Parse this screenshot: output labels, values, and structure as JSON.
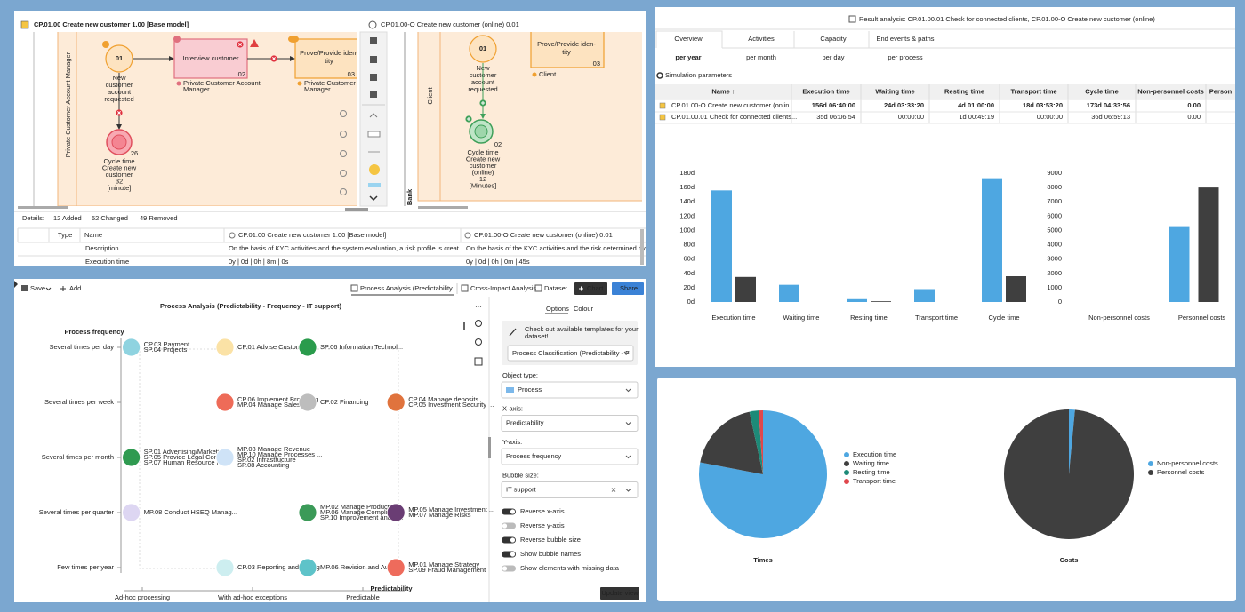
{
  "diagram": {
    "left_title": "CP.01.00 Create new customer 1.00 [Base model]",
    "right_title": "CP.01.00-O Create new customer (online) 0.01",
    "left": {
      "lane": "Private Customer Account Manager",
      "start": {
        "id": "01",
        "label": [
          "New",
          "customer",
          "account",
          "requested"
        ]
      },
      "task1": {
        "label": [
          "Interview customer"
        ],
        "id": "02",
        "role": [
          "Private Customer Account",
          "Manager"
        ]
      },
      "task2": {
        "label": [
          "Prove/Provide iden-",
          "tity"
        ],
        "id": "03",
        "role": [
          "Private Customer Ac",
          "Manager"
        ]
      },
      "end": {
        "id": "26",
        "label": [
          "Cycle time",
          "Create new",
          "customer",
          "32",
          "[minute]"
        ]
      }
    },
    "right": {
      "lane": "Client",
      "pool": "Bank",
      "start": {
        "id": "01",
        "label": [
          "New",
          "customer",
          "account",
          "requested"
        ]
      },
      "task": {
        "label": [
          "Prove/Provide iden-",
          "tity"
        ],
        "id": "03",
        "role": [
          "Client"
        ]
      },
      "end": {
        "id": "02",
        "label": [
          "Cycle time",
          "Create new",
          "customer",
          "(online)",
          "12",
          "[Minutes]"
        ]
      }
    },
    "details": {
      "label": "Details:",
      "added": "12 Added",
      "changed": "52 Changed",
      "removed": "49 Removed",
      "columns": [
        "Type",
        "Name",
        "CP.01.00 Create new customer 1.00 [Base model]",
        "CP.01.00-O Create new customer (online) 0.01"
      ],
      "rows": [
        [
          "Description",
          "On the basis of KYC activities and the system evaluation, a risk profile is creat...",
          "On the basis of the KYC activities and the risk determined by th"
        ],
        [
          "Execution time",
          "0y | 0d | 0h | 8m | 0s",
          "0y | 0d | 0h | 0m | 45s"
        ]
      ]
    }
  },
  "analysis": {
    "toolbar": {
      "save": "Save",
      "add": "Add",
      "tabs": [
        "Process Analysis (Predictability ...",
        "Cross-Impact Analysis",
        "Dataset"
      ],
      "chart": "Chart",
      "share": "Share"
    },
    "title": "Process Analysis (Predictability - Frequency - IT support)",
    "y_title": "Process frequency",
    "x_title": "Predictability",
    "y_categories": [
      "Several times per day",
      "Several times per week",
      "Several times per month",
      "Several times per quarter",
      "Few times per year"
    ],
    "xticks": [
      {
        "value": 0,
        "label": "Ad-hoc processing"
      },
      {
        "value": 1,
        "label": "With ad-hoc exceptions"
      },
      {
        "value": 2,
        "label": "Predictable"
      }
    ],
    "bubbles": [
      {
        "x": -0.1,
        "y": 0,
        "color": "#8fd3e0",
        "names": [
          "CP.03 Payment",
          "SP.04 Projects"
        ]
      },
      {
        "x": 0.75,
        "y": 0,
        "color": "#fbe2a6",
        "names": [
          "CP.01 Advise Customer"
        ]
      },
      {
        "x": 1.5,
        "y": 0,
        "color": "#2a9b4c",
        "names": [
          "SP.06 Information Technol..."
        ]
      },
      {
        "x": 0.75,
        "y": 1,
        "color": "#ee6b58",
        "names": [
          "CP.06 Implement Brokering...",
          "MP.04 Manage Sales"
        ]
      },
      {
        "x": 1.5,
        "y": 1,
        "color": "#bdbdbd",
        "names": [
          "CP.02 Financing"
        ]
      },
      {
        "x": 2.3,
        "y": 1,
        "color": "#e0733d",
        "names": [
          "CP.04 Manage deposits",
          "CP.05 Investment Security ..."
        ]
      },
      {
        "x": -0.1,
        "y": 2,
        "color": "#2f9a50",
        "names": [
          "SP.01 Advertising/Marketing",
          "SP.05 Provide Legal Consu...",
          "SP.07 Human Resource Ma..."
        ]
      },
      {
        "x": 0.75,
        "y": 2,
        "color": "#cfe3f7",
        "names": [
          "MP.03 Manage Revenue",
          "MP.10 Manage Processes ...",
          "SP.02 Infrastructure",
          "SP.08 Accounting"
        ]
      },
      {
        "x": -0.1,
        "y": 3,
        "color": "#ddd6f2",
        "names": [
          "MP.08 Conduct HSEQ Manag..."
        ]
      },
      {
        "x": 1.5,
        "y": 3,
        "color": "#3b9a58",
        "names": [
          "MP.02 Manage Products",
          "MP.06 Manage Compliance",
          "SP.10 Improvement and C..."
        ]
      },
      {
        "x": 2.3,
        "y": 3,
        "color": "#6a3d74",
        "names": [
          "MP.05 Manage Investment ...",
          "MP.07 Manage Risks"
        ]
      },
      {
        "x": 0.75,
        "y": 4,
        "color": "#cdeef0",
        "names": [
          "CP.03 Reporting and Rating"
        ]
      },
      {
        "x": 1.5,
        "y": 4,
        "color": "#5ec3c9",
        "names": [
          "MP.06 Revision and Audit ..."
        ]
      },
      {
        "x": 2.3,
        "y": 4,
        "color": "#ee6b5c",
        "names": [
          "MP.01 Manage Strategy",
          "SP.09 Fraud Management"
        ]
      }
    ],
    "options": {
      "tabs": [
        "Options",
        "Colour"
      ],
      "template_hint": [
        "Check out available templates for your",
        "dataset!"
      ],
      "template": "Process Classification (Predictability - F",
      "fields": [
        {
          "label": "Object type:",
          "value": "Process"
        },
        {
          "label": "X-axis:",
          "value": "Predictability"
        },
        {
          "label": "Y-axis:",
          "value": "Process frequency"
        },
        {
          "label": "Bubble size:",
          "value": "IT support"
        }
      ],
      "toggles": [
        {
          "label": "Reverse x-axis",
          "on": true
        },
        {
          "label": "Reverse y-axis",
          "on": false
        },
        {
          "label": "Reverse bubble size",
          "on": true
        },
        {
          "label": "Show bubble names",
          "on": true
        },
        {
          "label": "Show elements with missing data",
          "on": false
        }
      ],
      "update": "Update view"
    }
  },
  "results": {
    "title": "Result analysis: CP.01.00.01 Check for connected clients, CP.01.00-O Create new customer (online)",
    "tabs": [
      "Overview",
      "Activities",
      "Capacity",
      "End events & paths"
    ],
    "periods": [
      "per year",
      "per month",
      "per day",
      "per process"
    ],
    "params": "Simulation parameters",
    "table": {
      "columns": [
        "Name ↑",
        "Execution time",
        "Waiting time",
        "Resting time",
        "Transport time",
        "Cycle time",
        "Non-personnel costs",
        "Person"
      ],
      "rows": [
        [
          "CP.01.00-O Create new customer (onlin...",
          "156d 06:40:00",
          "24d 03:33:20",
          "4d 01:00:00",
          "18d 03:53:20",
          "173d 04:33:56",
          "0.00"
        ],
        [
          "CP.01.00.01 Check for connected clients...",
          "35d 06:06:54",
          "00:00:00",
          "1d 00:49:19",
          "00:00:00",
          "36d 06:59:13",
          "0.00"
        ]
      ]
    },
    "times_chart": {
      "type": "bar",
      "categories": [
        "Execution time",
        "Waiting time",
        "Resting time",
        "Transport time",
        "Cycle time"
      ],
      "series": [
        {
          "color": "#4ea7e1",
          "values": [
            156,
            24,
            4,
            18,
            173
          ]
        },
        {
          "color": "#3f3f3f",
          "values": [
            35,
            0,
            1,
            0,
            36
          ]
        }
      ],
      "ylim": [
        0,
        180
      ],
      "yticks": [
        {
          "value": 0,
          "label": "0d"
        },
        {
          "value": 20,
          "label": "20d"
        },
        {
          "value": 40,
          "label": "40d"
        },
        {
          "value": 60,
          "label": "60d"
        },
        {
          "value": 80,
          "label": "80d"
        },
        {
          "value": 100,
          "label": "100d"
        },
        {
          "value": 120,
          "label": "120d"
        },
        {
          "value": 140,
          "label": "140d"
        },
        {
          "value": 160,
          "label": "160d"
        },
        {
          "value": 180,
          "label": "180d"
        }
      ]
    },
    "costs_chart": {
      "type": "bar",
      "categories": [
        "Non-personnel costs",
        "Personnel costs"
      ],
      "series": [
        {
          "color": "#4ea7e1",
          "values": [
            0,
            5300
          ]
        },
        {
          "color": "#3f3f3f",
          "values": [
            0,
            8000
          ]
        }
      ],
      "ylim": [
        0,
        9000
      ],
      "yticks": [
        0,
        1000,
        2000,
        3000,
        4000,
        5000,
        6000,
        7000,
        8000,
        9000
      ]
    }
  },
  "pies": [
    {
      "type": "pie",
      "title": "Times",
      "categories": [
        "Execution time",
        "Waiting time",
        "Resting time",
        "Transport time"
      ],
      "colors": [
        "#4ea7e1",
        "#3f3f3f",
        "#1d8a78",
        "#e0474c"
      ],
      "values": [
        78,
        18.6,
        2.3,
        1.1
      ]
    },
    {
      "type": "pie",
      "title": "Costs",
      "categories": [
        "Non-personnel costs",
        "Personnel costs"
      ],
      "colors": [
        "#4ea7e1",
        "#3f3f3f"
      ],
      "values": [
        1.5,
        98.5
      ]
    }
  ]
}
